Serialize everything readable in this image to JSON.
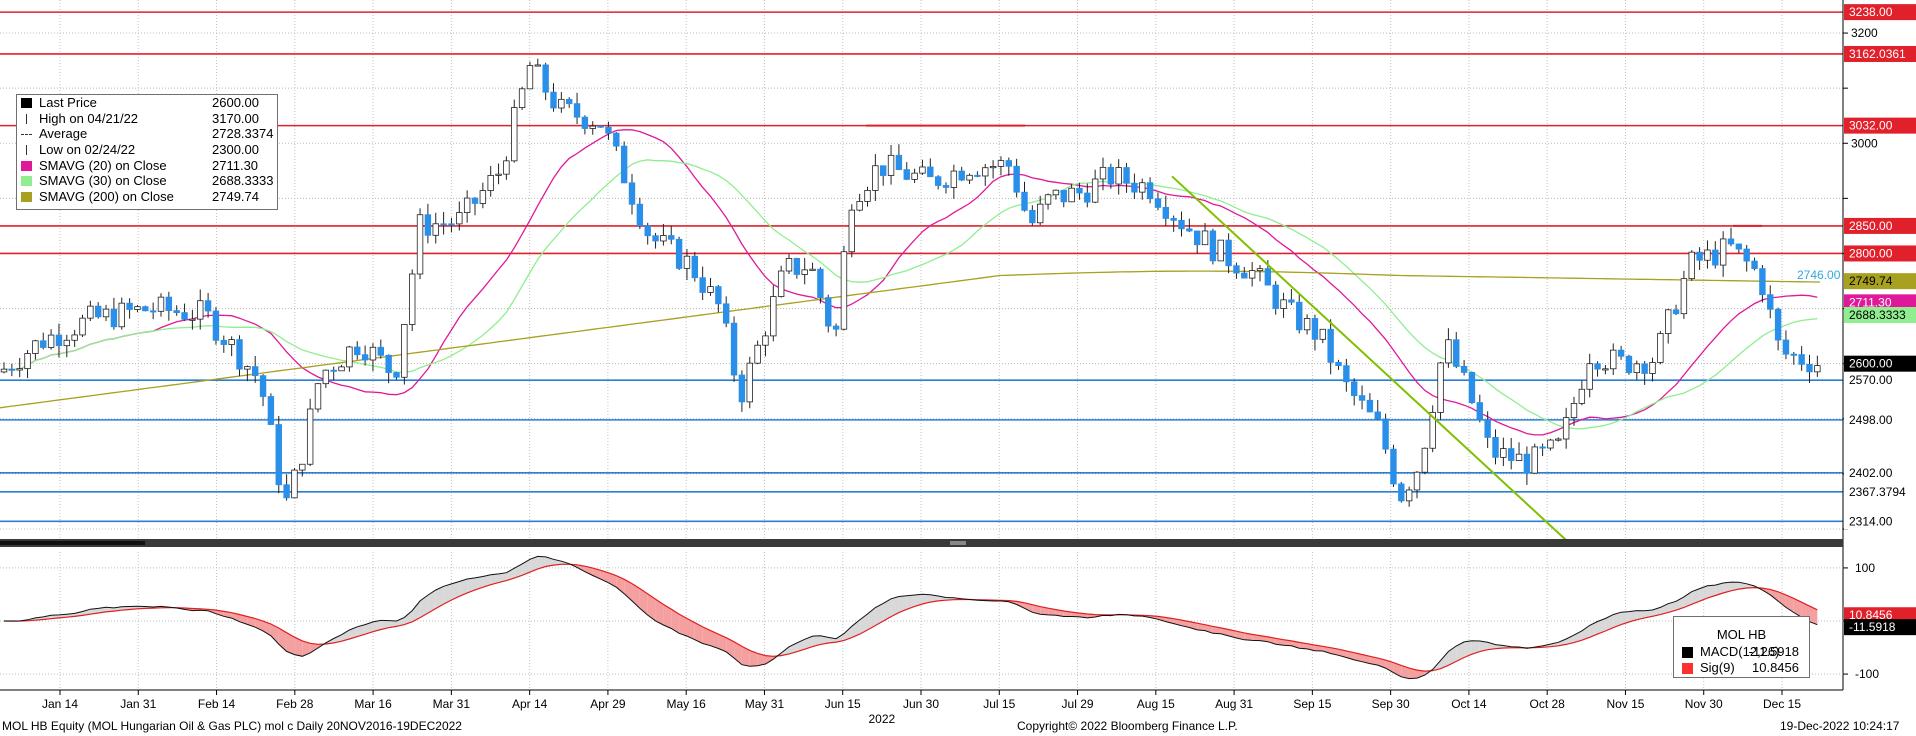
{
  "header": {
    "ticker_line": "MOL HB Equity (MOL Hungarian Oil & Gas PLC) mol c  Daily 20NOV2016-19DEC2022",
    "copyright": "Copyright© 2022 Bloomberg Finance L.P.",
    "timestamp": "19-Dec-2022 10:24:17"
  },
  "legend": {
    "items": [
      {
        "label": "Last Price",
        "value": "2600.00",
        "color": "#000000"
      },
      {
        "label": "High on 04/21/22",
        "value": "3170.00",
        "color": ""
      },
      {
        "label": "Average",
        "value": "2728.3374",
        "color": ""
      },
      {
        "label": "Low on 02/24/22",
        "value": "2300.00",
        "color": ""
      },
      {
        "label": "SMAVG (20)  on Close",
        "value": "2711.30",
        "color": "#e0189a"
      },
      {
        "label": "SMAVG (30)  on Close",
        "value": "2688.3333",
        "color": "#90ee90"
      },
      {
        "label": "SMAVG (200)  on Close",
        "value": "2749.74",
        "color": "#a8a020"
      }
    ]
  },
  "macd_legend": {
    "title": "MOL HB",
    "items": [
      {
        "label": "MACD(12,26)",
        "value": "-11.5918",
        "color": "#000000"
      },
      {
        "label": "Sig(9)",
        "value": "10.8456",
        "color": "#ff3030"
      }
    ]
  },
  "chart_data": [
    {
      "type": "candlestick",
      "title": "",
      "ylim": [
        2280,
        3260
      ],
      "y_ticks": [
        2300,
        2400,
        2500,
        2600,
        2700,
        2800,
        2900,
        3000,
        3100,
        3200
      ],
      "y_tick_labels": [
        "",
        "",
        "",
        "",
        "",
        "",
        "",
        "3000",
        "",
        "3200"
      ],
      "x_tick_labels": [
        "Jan 14",
        "Jan 31",
        "Feb 14",
        "Feb 28",
        "Mar 16",
        "Mar 31",
        "Apr 14",
        "Apr 29",
        "May 16",
        "May 31",
        "Jun 15",
        "Jun 30",
        "Jul 15",
        "Jul 29",
        "Aug 15",
        "Aug 31",
        "Sep 15",
        "Sep 30",
        "Oct 14",
        "Oct 28",
        "Nov 15",
        "Nov 30",
        "Dec 15"
      ],
      "x_year_label": "2022",
      "horizontal_levels": [
        {
          "value": 3238.0,
          "label": "3238.00",
          "color": "#e0202a"
        },
        {
          "value": 3162.0361,
          "label": "3162.0361",
          "color": "#e0202a"
        },
        {
          "value": 3032.0,
          "label": "3032.00",
          "color": "#e0202a"
        },
        {
          "value": 2850.0,
          "label": "2850.00",
          "color": "#e0202a"
        },
        {
          "value": 2800.0,
          "label": "2800.00",
          "color": "#e0202a"
        },
        {
          "value": 2570.0,
          "label": "2570.00",
          "color": "#2a7fd4"
        },
        {
          "value": 2498.0,
          "label": "2498.00",
          "color": "#2a7fd4"
        },
        {
          "value": 2402.0,
          "label": "2402.00",
          "color": "#2a7fd4"
        },
        {
          "value": 2367.3794,
          "label": "2367.3794",
          "color": "#2a7fd4"
        },
        {
          "value": 2314.0,
          "label": "2314.00",
          "color": "#2a7fd4"
        }
      ],
      "value_tags": [
        {
          "value": 2749.74,
          "label": "2749.74",
          "bg": "#a8a020",
          "fg": "#000000"
        },
        {
          "value": 2711.3,
          "label": "2711.30",
          "bg": "#e0189a",
          "fg": "#ffffff"
        },
        {
          "value": 2688.3333,
          "label": "2688.3333",
          "bg": "#90ee90",
          "fg": "#000000"
        },
        {
          "value": 2600.0,
          "label": "2600.00",
          "bg": "#000000",
          "fg": "#ffffff"
        }
      ],
      "annotation": {
        "value": 2746.0,
        "label": "2746.00",
        "color": "#35a8d8"
      },
      "last_price": 2600.0,
      "high": 3170.0,
      "low": 2300.0,
      "colors": {
        "up": "#ffffff",
        "down": "#2a8fe8",
        "sma20": "#e0189a",
        "sma30": "#90ee90",
        "sma200": "#a8a020",
        "trendline": "#80c000"
      }
    },
    {
      "type": "line",
      "series": [
        {
          "name": "MACD(12,26)",
          "last": -11.5918
        },
        {
          "name": "Sig(9)",
          "last": 10.8456
        }
      ],
      "ylim": [
        -130,
        130
      ],
      "y_ticks": [
        100,
        0,
        -100
      ],
      "y_tick_labels": [
        "100",
        "",
        "-100"
      ],
      "value_tags": [
        {
          "value": 10.8456,
          "label": "10.8456",
          "bg": "#e0202a",
          "fg": "#ffffff"
        },
        {
          "value": -11.5918,
          "label": "-11.5918",
          "bg": "#000000",
          "fg": "#ffffff"
        }
      ]
    }
  ]
}
